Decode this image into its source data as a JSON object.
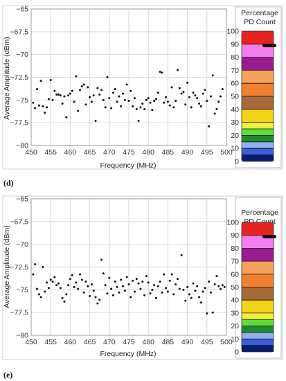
{
  "scale": {
    "title_line1": "Percentage",
    "title_line2": "PD Count",
    "ticks": [
      "100",
      "90",
      "80",
      "70",
      "60",
      "50",
      "40",
      "30",
      "20",
      "10",
      "0"
    ],
    "bands": [
      {
        "from": 90,
        "to": 100,
        "color": "#e8231f"
      },
      {
        "from": 80,
        "to": 90,
        "color": "#f07ef0"
      },
      {
        "from": 70,
        "to": 80,
        "color": "#9b1a92"
      },
      {
        "from": 60,
        "to": 70,
        "color": "#f7a25a"
      },
      {
        "from": 50,
        "to": 60,
        "color": "#f47f2d"
      },
      {
        "from": 40,
        "to": 50,
        "color": "#a56a3a"
      },
      {
        "from": 30,
        "to": 40,
        "color": "#f3d317"
      },
      {
        "from": 25,
        "to": 30,
        "color": "#f4ef3a"
      },
      {
        "from": 20,
        "to": 25,
        "color": "#5ddc3b"
      },
      {
        "from": 15,
        "to": 20,
        "color": "#1f8a2a"
      },
      {
        "from": 10,
        "to": 15,
        "color": "#8fb0e8"
      },
      {
        "from": 5,
        "to": 10,
        "color": "#3a5fd8"
      },
      {
        "from": 0,
        "to": 5,
        "color": "#0a1a6e"
      }
    ],
    "marker_percent": 89
  },
  "chart_data": [
    {
      "panel_label": "(d)",
      "type": "scatter",
      "xlabel": "Frequency (MHz)",
      "ylabel": "Average Amplitude (dBm)",
      "xlim": [
        450,
        500
      ],
      "ylim": [
        -80,
        -65
      ],
      "xticks": [
        "450",
        "455",
        "460",
        "465",
        "470",
        "475",
        "480",
        "485",
        "490",
        "495",
        "500"
      ],
      "yticks": [
        "-65",
        "-67.5",
        "-70",
        "-72.5",
        "-75",
        "-77.5",
        "-80"
      ],
      "grid": true,
      "points": [
        [
          450.5,
          -75.3
        ],
        [
          451.0,
          -75.9
        ],
        [
          451.5,
          -73.8
        ],
        [
          452.0,
          -75.6
        ],
        [
          452.5,
          -72.9
        ],
        [
          453.0,
          -75.7
        ],
        [
          453.5,
          -76.4
        ],
        [
          454.0,
          -75.8
        ],
        [
          454.5,
          -74.9
        ],
        [
          455.0,
          -72.8
        ],
        [
          455.5,
          -75.0
        ],
        [
          456.0,
          -74.0
        ],
        [
          456.5,
          -74.4
        ],
        [
          457.0,
          -74.4
        ],
        [
          457.5,
          -74.5
        ],
        [
          458.0,
          -75.4
        ],
        [
          458.5,
          -74.6
        ],
        [
          459.0,
          -76.9
        ],
        [
          459.5,
          -74.5
        ],
        [
          460.0,
          -74.3
        ],
        [
          460.5,
          -74.0
        ],
        [
          461.0,
          -75.2
        ],
        [
          461.5,
          -72.4
        ],
        [
          462.0,
          -76.2
        ],
        [
          462.5,
          -73.9
        ],
        [
          463.0,
          -73.5
        ],
        [
          463.5,
          -73.3
        ],
        [
          464.0,
          -75.5
        ],
        [
          464.5,
          -73.6
        ],
        [
          465.0,
          -74.7
        ],
        [
          465.5,
          -75.2
        ],
        [
          466.0,
          -74.5
        ],
        [
          466.5,
          -77.3
        ],
        [
          467.0,
          -73.7
        ],
        [
          467.5,
          -74.4
        ],
        [
          468.0,
          -73.9
        ],
        [
          468.5,
          -75.0
        ],
        [
          469.0,
          -75.8
        ],
        [
          469.5,
          -72.5
        ],
        [
          470.0,
          -74.8
        ],
        [
          470.5,
          -75.9
        ],
        [
          471.0,
          -74.2
        ],
        [
          471.5,
          -73.8
        ],
        [
          472.0,
          -75.2
        ],
        [
          472.5,
          -74.6
        ],
        [
          473.0,
          -75.7
        ],
        [
          473.5,
          -74.3
        ],
        [
          474.0,
          -75.0
        ],
        [
          474.5,
          -73.3
        ],
        [
          475.0,
          -75.1
        ],
        [
          475.5,
          -74.0
        ],
        [
          476.0,
          -75.7
        ],
        [
          476.5,
          -74.8
        ],
        [
          477.0,
          -76.0
        ],
        [
          477.5,
          -77.3
        ],
        [
          478.0,
          -75.8
        ],
        [
          478.5,
          -75.4
        ],
        [
          479.0,
          -76.0
        ],
        [
          479.5,
          -75.0
        ],
        [
          480.0,
          -74.8
        ],
        [
          480.5,
          -75.3
        ],
        [
          481.0,
          -76.1
        ],
        [
          481.5,
          -75.1
        ],
        [
          482.0,
          -74.9
        ],
        [
          482.5,
          -74.2
        ],
        [
          483.0,
          -71.9
        ],
        [
          483.5,
          -72.0
        ],
        [
          484.0,
          -75.3
        ],
        [
          484.5,
          -74.7
        ],
        [
          485.0,
          -75.2
        ],
        [
          485.5,
          -75.6
        ],
        [
          486.0,
          -73.6
        ],
        [
          486.5,
          -75.8
        ],
        [
          487.0,
          -75.1
        ],
        [
          487.5,
          -71.7
        ],
        [
          488.0,
          -73.7
        ],
        [
          488.5,
          -74.3
        ],
        [
          489.0,
          -74.1
        ],
        [
          489.5,
          -75.5
        ],
        [
          490.0,
          -73.1
        ],
        [
          490.5,
          -74.7
        ],
        [
          491.0,
          -75.8
        ],
        [
          491.5,
          -74.2
        ],
        [
          492.0,
          -74.5
        ],
        [
          492.5,
          -74.8
        ],
        [
          493.0,
          -75.4
        ],
        [
          493.5,
          -75.7
        ],
        [
          494.0,
          -74.3
        ],
        [
          494.5,
          -73.9
        ],
        [
          495.0,
          -75.1
        ],
        [
          495.5,
          -77.9
        ],
        [
          496.0,
          -74.6
        ],
        [
          496.5,
          -72.3
        ],
        [
          497.0,
          -76.5
        ],
        [
          497.5,
          -76.0
        ],
        [
          498.0,
          -75.2
        ],
        [
          498.5,
          -74.6
        ],
        [
          499.0,
          -73.8
        ]
      ]
    },
    {
      "panel_label": "(e)",
      "type": "scatter",
      "xlabel": "Frequency (MHz)",
      "ylabel": "Average Amplitude (dBm)",
      "xlim": [
        450,
        500
      ],
      "ylim": [
        -80,
        -65
      ],
      "xticks": [
        "450",
        "455",
        "460",
        "465",
        "470",
        "475",
        "480",
        "485",
        "490",
        "495",
        "500"
      ],
      "yticks": [
        "-65",
        "-67.5",
        "-70",
        "-72.5",
        "-75",
        "-77.5",
        "-80"
      ],
      "grid": true,
      "points": [
        [
          450.5,
          -73.3
        ],
        [
          451.0,
          -72.2
        ],
        [
          451.5,
          -74.9
        ],
        [
          452.0,
          -75.5
        ],
        [
          452.5,
          -75.8
        ],
        [
          453.0,
          -72.5
        ],
        [
          453.5,
          -75.2
        ],
        [
          454.0,
          -74.2
        ],
        [
          454.5,
          -74.8
        ],
        [
          455.0,
          -73.9
        ],
        [
          455.5,
          -74.1
        ],
        [
          456.0,
          -73.6
        ],
        [
          456.5,
          -74.5
        ],
        [
          457.0,
          -74.3
        ],
        [
          457.5,
          -74.8
        ],
        [
          458.0,
          -75.9
        ],
        [
          458.5,
          -76.3
        ],
        [
          459.0,
          -75.5
        ],
        [
          459.5,
          -74.5
        ],
        [
          460.0,
          -73.8
        ],
        [
          460.5,
          -73.4
        ],
        [
          461.0,
          -74.7
        ],
        [
          461.5,
          -74.2
        ],
        [
          462.0,
          -74.9
        ],
        [
          462.5,
          -73.3
        ],
        [
          463.0,
          -73.9
        ],
        [
          463.5,
          -75.3
        ],
        [
          464.0,
          -74.1
        ],
        [
          464.5,
          -74.6
        ],
        [
          465.0,
          -75.7
        ],
        [
          465.5,
          -74.4
        ],
        [
          466.0,
          -75.1
        ],
        [
          466.5,
          -75.8
        ],
        [
          467.0,
          -76.5
        ],
        [
          467.5,
          -76.1
        ],
        [
          468.0,
          -71.7
        ],
        [
          468.5,
          -73.2
        ],
        [
          469.0,
          -74.5
        ],
        [
          469.5,
          -75.4
        ],
        [
          470.0,
          -73.7
        ],
        [
          470.5,
          -74.9
        ],
        [
          471.0,
          -75.6
        ],
        [
          471.5,
          -74.1
        ],
        [
          472.0,
          -74.7
        ],
        [
          472.5,
          -75.3
        ],
        [
          473.0,
          -73.9
        ],
        [
          473.5,
          -74.6
        ],
        [
          474.0,
          -75.1
        ],
        [
          474.5,
          -73.6
        ],
        [
          475.0,
          -74.4
        ],
        [
          475.5,
          -75.8
        ],
        [
          476.0,
          -74.0
        ],
        [
          476.5,
          -75.2
        ],
        [
          477.0,
          -73.8
        ],
        [
          477.5,
          -74.3
        ],
        [
          478.0,
          -74.9
        ],
        [
          478.5,
          -74.1
        ],
        [
          479.0,
          -75.6
        ],
        [
          479.5,
          -73.5
        ],
        [
          480.0,
          -74.2
        ],
        [
          480.5,
          -75.4
        ],
        [
          481.0,
          -75.0
        ],
        [
          481.5,
          -74.5
        ],
        [
          482.0,
          -75.9
        ],
        [
          482.5,
          -74.6
        ],
        [
          483.0,
          -74.1
        ],
        [
          483.5,
          -75.3
        ],
        [
          484.0,
          -73.3
        ],
        [
          484.5,
          -74.8
        ],
        [
          485.0,
          -75.2
        ],
        [
          485.5,
          -74.0
        ],
        [
          486.0,
          -73.3
        ],
        [
          486.5,
          -75.5
        ],
        [
          487.0,
          -74.4
        ],
        [
          487.5,
          -73.8
        ],
        [
          488.0,
          -74.9
        ],
        [
          488.5,
          -71.2
        ],
        [
          489.0,
          -75.0
        ],
        [
          489.5,
          -76.2
        ],
        [
          490.0,
          -74.7
        ],
        [
          490.5,
          -75.5
        ],
        [
          491.0,
          -75.9
        ],
        [
          491.5,
          -74.3
        ],
        [
          492.0,
          -75.1
        ],
        [
          492.5,
          -74.6
        ],
        [
          493.0,
          -75.8
        ],
        [
          493.5,
          -76.4
        ],
        [
          494.0,
          -75.2
        ],
        [
          494.5,
          -74.8
        ],
        [
          495.0,
          -77.6
        ],
        [
          495.5,
          -74.1
        ],
        [
          496.0,
          -75.3
        ],
        [
          496.5,
          -77.5
        ],
        [
          497.0,
          -74.4
        ],
        [
          497.5,
          -73.5
        ],
        [
          498.0,
          -74.6
        ],
        [
          498.5,
          -74.9
        ],
        [
          499.0,
          -74.5
        ],
        [
          499.5,
          -74.7
        ]
      ]
    }
  ]
}
